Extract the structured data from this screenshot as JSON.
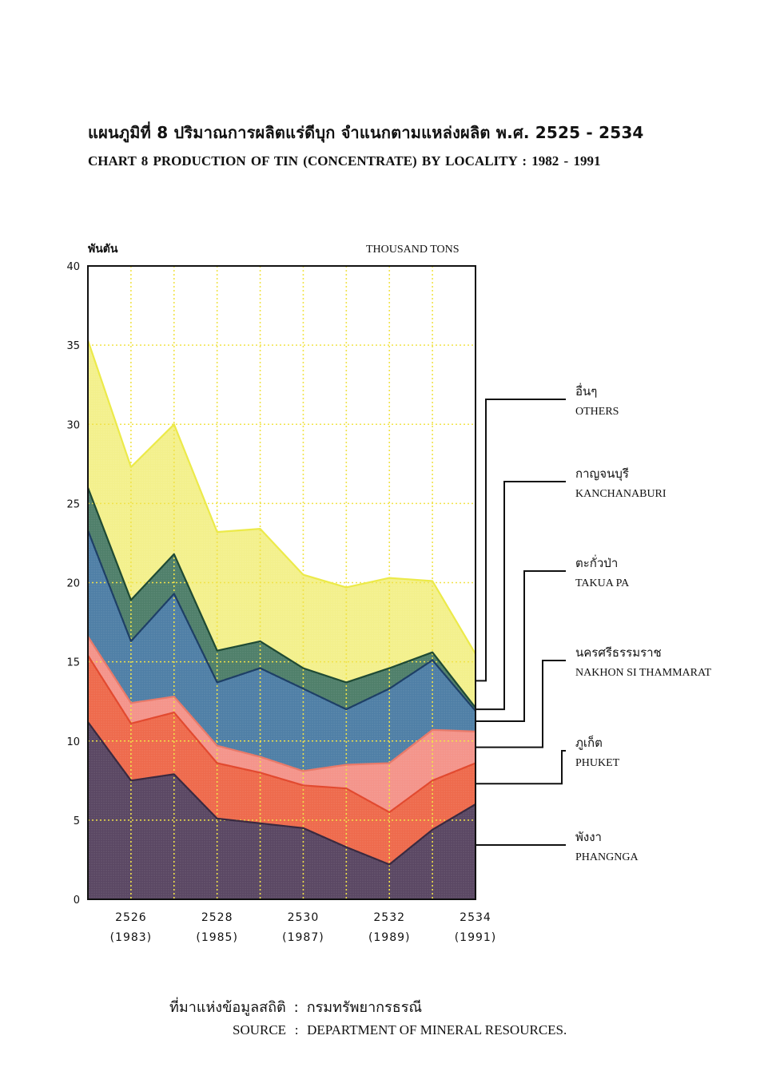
{
  "title_th": "แผนภูมิที่  8  ปริมาณการผลิตแร่ดีบุก จำแนกตามแหล่งผลิต พ.ศ. 2525 - 2534",
  "title_en": "CHART     8  PRODUCTION OF TIN (CONCENTRATE) BY LOCALITY  :  1982  -  1991",
  "source": {
    "label_th": "ที่มาแห่งข้อมูลสถิติ",
    "value_th": "กรมทรัพยากรธรณี",
    "label_en": "SOURCE",
    "value_en": "DEPARTMENT OF MINERAL RESOURCES.",
    "separator": ":"
  },
  "chart_data": {
    "type": "area",
    "stacked": true,
    "ylabel_th": "พันตัน",
    "ylabel_en": "THOUSAND TONS",
    "ylim": [
      0,
      40
    ],
    "yticks": [
      0,
      5,
      10,
      15,
      20,
      25,
      30,
      35,
      40
    ],
    "x": [
      1982,
      1983,
      1984,
      1985,
      1986,
      1987,
      1988,
      1989,
      1990,
      1991
    ],
    "xtick_labels": [
      {
        "x": 1983,
        "be": "2526",
        "ce": "(1983)"
      },
      {
        "x": 1985,
        "be": "2528",
        "ce": "(1985)"
      },
      {
        "x": 1987,
        "be": "2530",
        "ce": "(1987)"
      },
      {
        "x": 1989,
        "be": "2532",
        "ce": "(1989)"
      },
      {
        "x": 1991,
        "be": "2534",
        "ce": "(1991)"
      }
    ],
    "grid": true,
    "series": [
      {
        "name_th": "พังงา",
        "name_en": "PHANGNGA",
        "color": "#5a4763",
        "values": [
          11.2,
          7.5,
          7.9,
          5.1,
          4.8,
          4.5,
          3.3,
          2.2,
          4.4,
          6.0
        ]
      },
      {
        "name_th": "ภูเก็ต",
        "name_en": "PHUKET",
        "color": "#ee6a4c",
        "values": [
          4.2,
          3.6,
          3.9,
          3.5,
          3.2,
          2.7,
          3.7,
          3.3,
          3.1,
          2.6
        ]
      },
      {
        "name_th": "นครศรีธรรมราช",
        "name_en": "NAKHON SI THAMMARAT",
        "color": "#f4948a",
        "values": [
          1.2,
          1.3,
          1.0,
          1.1,
          1.0,
          0.9,
          1.5,
          3.1,
          3.2,
          2.0
        ]
      },
      {
        "name_th": "ตะกั่วป่า",
        "name_en": "TAKUA PA",
        "color": "#4f7fa6",
        "values": [
          6.7,
          3.9,
          6.5,
          4.0,
          5.6,
          5.2,
          3.5,
          4.7,
          4.4,
          1.3
        ]
      },
      {
        "name_th": "กาญจนบุรี",
        "name_en": "KANCHANABURI",
        "color": "#4f7f6a",
        "values": [
          2.7,
          2.6,
          2.5,
          2.0,
          1.7,
          1.3,
          1.7,
          1.3,
          0.5,
          0.2
        ]
      },
      {
        "name_th": "อื่นๆ",
        "name_en": "OTHERS",
        "color": "#f3f08c",
        "values": [
          9.3,
          8.4,
          8.2,
          7.5,
          7.1,
          5.9,
          6.0,
          5.7,
          4.5,
          3.4
        ]
      }
    ],
    "legend_placement": "right"
  }
}
